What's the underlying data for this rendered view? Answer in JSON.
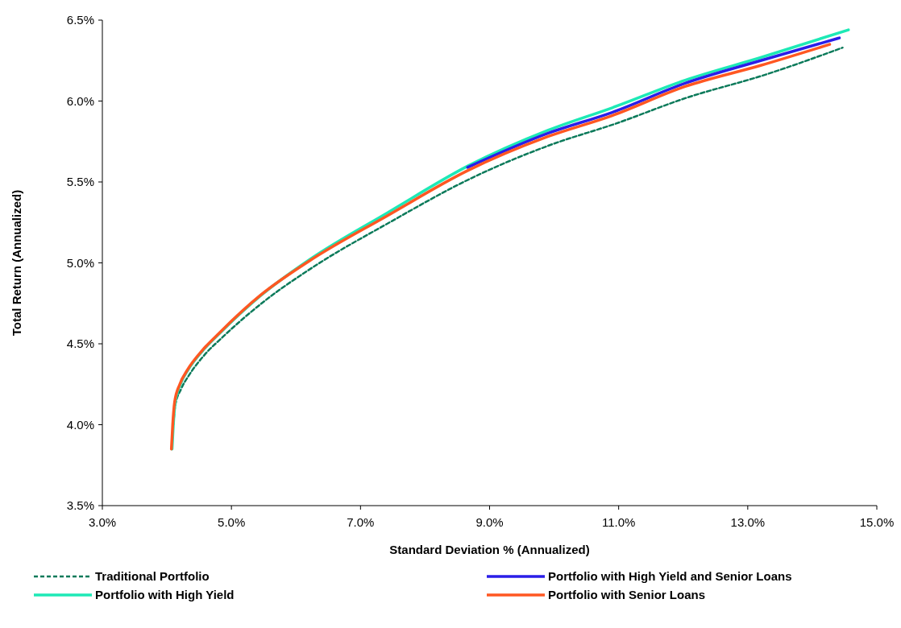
{
  "chart_data": {
    "type": "line",
    "xlabel": "Standard Deviation % (Annualized)",
    "ylabel": "Total Return (Annualized)",
    "xlim": [
      3,
      15
    ],
    "ylim": [
      3.5,
      6.5
    ],
    "xticks": [
      {
        "value": 3,
        "label": "3.0%"
      },
      {
        "value": 5,
        "label": "5.0%"
      },
      {
        "value": 7,
        "label": "7.0%"
      },
      {
        "value": 9,
        "label": "9.0%"
      },
      {
        "value": 11,
        "label": "11.0%"
      },
      {
        "value": 13,
        "label": "13.0%"
      },
      {
        "value": 15,
        "label": "15.0%"
      }
    ],
    "yticks": [
      {
        "value": 3.5,
        "label": "3.5%"
      },
      {
        "value": 4,
        "label": "4.0%"
      },
      {
        "value": 4.5,
        "label": "4.5%"
      },
      {
        "value": 5,
        "label": "5.0%"
      },
      {
        "value": 5.5,
        "label": "5.5%"
      },
      {
        "value": 6,
        "label": "6.0%"
      },
      {
        "value": 6.5,
        "label": "6.5%"
      }
    ],
    "grid": false,
    "legend": "bottom",
    "marker": "none",
    "series": [
      {
        "name": "Traditional Portfolio",
        "color": "#0b7a5a",
        "line_style": "dashed",
        "x": [
          4.1,
          4.13,
          4.22,
          4.35,
          4.58,
          4.86,
          5.5,
          6.25,
          7.45,
          8.7,
          9.95,
          10.95,
          12.05,
          13.25,
          14.47
        ],
        "values": [
          4.0,
          4.12,
          4.22,
          4.31,
          4.43,
          4.54,
          4.76,
          4.97,
          5.25,
          5.52,
          5.73,
          5.86,
          6.02,
          6.16,
          6.33
        ]
      },
      {
        "name": "Portfolio with High Yield",
        "color": "#1de9b6",
        "line_style": "solid",
        "x": [
          4.08,
          4.1,
          4.13,
          4.21,
          4.33,
          4.56,
          4.83,
          5.46,
          6.21,
          7.42,
          8.67,
          9.91,
          10.91,
          12.04,
          13.21,
          14.56
        ],
        "values": [
          3.85,
          4.0,
          4.14,
          4.25,
          4.34,
          4.46,
          4.57,
          4.8,
          5.02,
          5.31,
          5.6,
          5.82,
          5.96,
          6.13,
          6.27,
          6.44
        ]
      },
      {
        "name": "Portfolio with High Yield and Senior Loans",
        "color": "#2a1ee8",
        "line_style": "solid",
        "x": [
          8.66,
          9.9,
          10.9,
          12.03,
          13.2,
          14.42
        ],
        "values": [
          5.59,
          5.8,
          5.93,
          6.11,
          6.25,
          6.39
        ]
      },
      {
        "name": "Portfolio with Senior Loans",
        "color": "#ff5722",
        "line_style": "solid",
        "x": [
          4.07,
          4.09,
          4.12,
          4.2,
          4.32,
          4.55,
          4.82,
          5.45,
          6.2,
          7.41,
          8.66,
          9.9,
          10.9,
          12.03,
          13.2,
          14.27
        ],
        "values": [
          3.85,
          4.0,
          4.14,
          4.25,
          4.34,
          4.46,
          4.57,
          4.8,
          5.01,
          5.29,
          5.57,
          5.78,
          5.91,
          6.09,
          6.22,
          6.35
        ]
      }
    ]
  }
}
